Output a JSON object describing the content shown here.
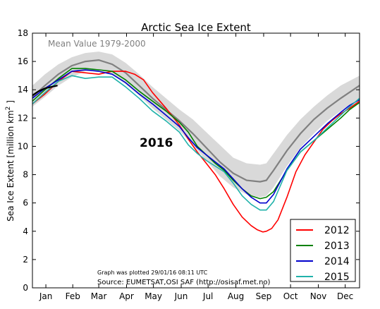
{
  "chart_data": {
    "type": "line",
    "title": "Arctic Sea Ice Extent",
    "ylabel": "Sea Ice Extent [million km²]",
    "ylabel_parts": {
      "main": "Sea Ice Extent [million km",
      "sup": "2",
      "tail": " ]"
    },
    "xlabel": "",
    "ylim": [
      0,
      18
    ],
    "xlim": [
      1,
      366
    ],
    "y_ticks": [
      0,
      2,
      4,
      6,
      8,
      10,
      12,
      14,
      16,
      18
    ],
    "x_ticks": [
      {
        "label": "Jan",
        "day": 16
      },
      {
        "label": "Feb",
        "day": 46
      },
      {
        "label": "Mar",
        "day": 75
      },
      {
        "label": "Apr",
        "day": 106
      },
      {
        "label": "May",
        "day": 136
      },
      {
        "label": "Jun",
        "day": 167
      },
      {
        "label": "Jul",
        "day": 197
      },
      {
        "label": "Aug",
        "day": 228
      },
      {
        "label": "Sep",
        "day": 259
      },
      {
        "label": "Oct",
        "day": 289
      },
      {
        "label": "Nov",
        "day": 320
      },
      {
        "label": "Dec",
        "day": 350
      }
    ],
    "grid": false,
    "legend_position": "bottom-right",
    "annotations": {
      "mean_label": "Mean Value 1979-2000",
      "current_year": "2016",
      "plotted_note": "Graph was plotted 29/01/16 08:11 UTC",
      "source": "Source: EUMETSAT,OSI SAF (http://osisaf.met.no)"
    },
    "mean_band": {
      "name": "Mean Value 1979-2000",
      "color": "#808080",
      "band_color": "#d9d9d9",
      "x": [
        1,
        15,
        30,
        45,
        60,
        75,
        90,
        105,
        120,
        135,
        150,
        165,
        180,
        195,
        210,
        225,
        240,
        255,
        262,
        270,
        285,
        300,
        315,
        330,
        345,
        366
      ],
      "mean": [
        13.5,
        14.3,
        15.1,
        15.7,
        16.0,
        16.1,
        15.8,
        15.2,
        14.3,
        13.4,
        12.6,
        11.8,
        10.9,
        9.9,
        8.9,
        8.1,
        7.6,
        7.5,
        7.6,
        8.3,
        9.7,
        10.9,
        11.9,
        12.7,
        13.4,
        14.3
      ],
      "upper": [
        14.3,
        15.1,
        15.8,
        16.3,
        16.6,
        16.7,
        16.5,
        15.9,
        15.1,
        14.2,
        13.4,
        12.6,
        11.9,
        11.0,
        10.1,
        9.2,
        8.8,
        8.7,
        8.8,
        9.5,
        10.8,
        11.9,
        12.8,
        13.6,
        14.3,
        15.0
      ],
      "lower": [
        12.8,
        13.5,
        14.3,
        14.9,
        15.3,
        15.4,
        15.1,
        14.4,
        13.6,
        12.7,
        11.9,
        11.1,
        10.1,
        9.0,
        7.9,
        7.1,
        6.6,
        6.4,
        6.5,
        7.1,
        8.6,
        9.9,
        10.9,
        11.8,
        12.5,
        13.4
      ]
    },
    "series": [
      {
        "name": "2012",
        "color": "#ff0000",
        "x": [
          1,
          15,
          30,
          45,
          60,
          75,
          90,
          105,
          115,
          125,
          135,
          150,
          165,
          175,
          185,
          195,
          205,
          215,
          225,
          235,
          245,
          252,
          258,
          262,
          268,
          275,
          285,
          295,
          305,
          315,
          325,
          335,
          345,
          355,
          366
        ],
        "values": [
          13.0,
          13.7,
          14.6,
          15.3,
          15.2,
          15.1,
          15.3,
          15.3,
          15.1,
          14.7,
          13.8,
          12.7,
          11.5,
          10.5,
          9.6,
          8.8,
          8.0,
          7.0,
          5.9,
          5.0,
          4.4,
          4.1,
          3.95,
          4.0,
          4.2,
          4.8,
          6.4,
          8.2,
          9.4,
          10.3,
          11.2,
          11.8,
          12.3,
          12.7,
          13.2
        ]
      },
      {
        "name": "2013",
        "color": "#008000",
        "x": [
          1,
          15,
          30,
          45,
          60,
          75,
          90,
          105,
          120,
          135,
          150,
          165,
          175,
          185,
          195,
          205,
          215,
          225,
          235,
          245,
          255,
          262,
          270,
          285,
          300,
          315,
          330,
          345,
          355,
          366
        ],
        "values": [
          13.2,
          14.0,
          14.8,
          15.5,
          15.5,
          15.4,
          15.3,
          14.7,
          13.9,
          13.2,
          12.5,
          11.7,
          11.0,
          10.0,
          9.4,
          8.8,
          8.3,
          7.6,
          7.0,
          6.5,
          6.3,
          6.4,
          6.8,
          8.3,
          9.6,
          10.4,
          11.2,
          12.0,
          12.6,
          13.1
        ]
      },
      {
        "name": "2014",
        "color": "#0000cc",
        "x": [
          1,
          15,
          30,
          45,
          60,
          75,
          90,
          105,
          120,
          135,
          150,
          165,
          175,
          185,
          195,
          205,
          215,
          225,
          235,
          245,
          255,
          262,
          270,
          285,
          300,
          315,
          330,
          345,
          355,
          366
        ],
        "values": [
          13.4,
          14.1,
          14.7,
          15.3,
          15.4,
          15.3,
          15.1,
          14.5,
          13.7,
          13.0,
          12.2,
          11.4,
          10.6,
          9.9,
          9.4,
          8.9,
          8.4,
          7.7,
          7.0,
          6.4,
          6.0,
          6.0,
          6.6,
          8.4,
          9.8,
          10.7,
          11.6,
          12.4,
          12.9,
          13.3
        ]
      },
      {
        "name": "2015",
        "color": "#20b2aa",
        "x": [
          1,
          15,
          30,
          45,
          60,
          75,
          90,
          105,
          120,
          135,
          150,
          165,
          175,
          185,
          195,
          205,
          215,
          225,
          235,
          245,
          255,
          262,
          270,
          285,
          300,
          315,
          330,
          345,
          355,
          366
        ],
        "values": [
          13.0,
          13.8,
          14.6,
          15.0,
          14.8,
          14.9,
          14.9,
          14.2,
          13.4,
          12.5,
          11.8,
          11.0,
          10.1,
          9.5,
          9.0,
          8.6,
          8.2,
          7.4,
          6.5,
          5.9,
          5.5,
          5.5,
          6.1,
          8.3,
          9.6,
          10.4,
          11.3,
          12.2,
          12.8,
          13.4
        ]
      },
      {
        "name": "2016",
        "color": "#000000",
        "x": [
          1,
          8,
          15,
          22,
          29
        ],
        "values": [
          13.6,
          13.9,
          14.1,
          14.2,
          14.3
        ]
      }
    ]
  }
}
